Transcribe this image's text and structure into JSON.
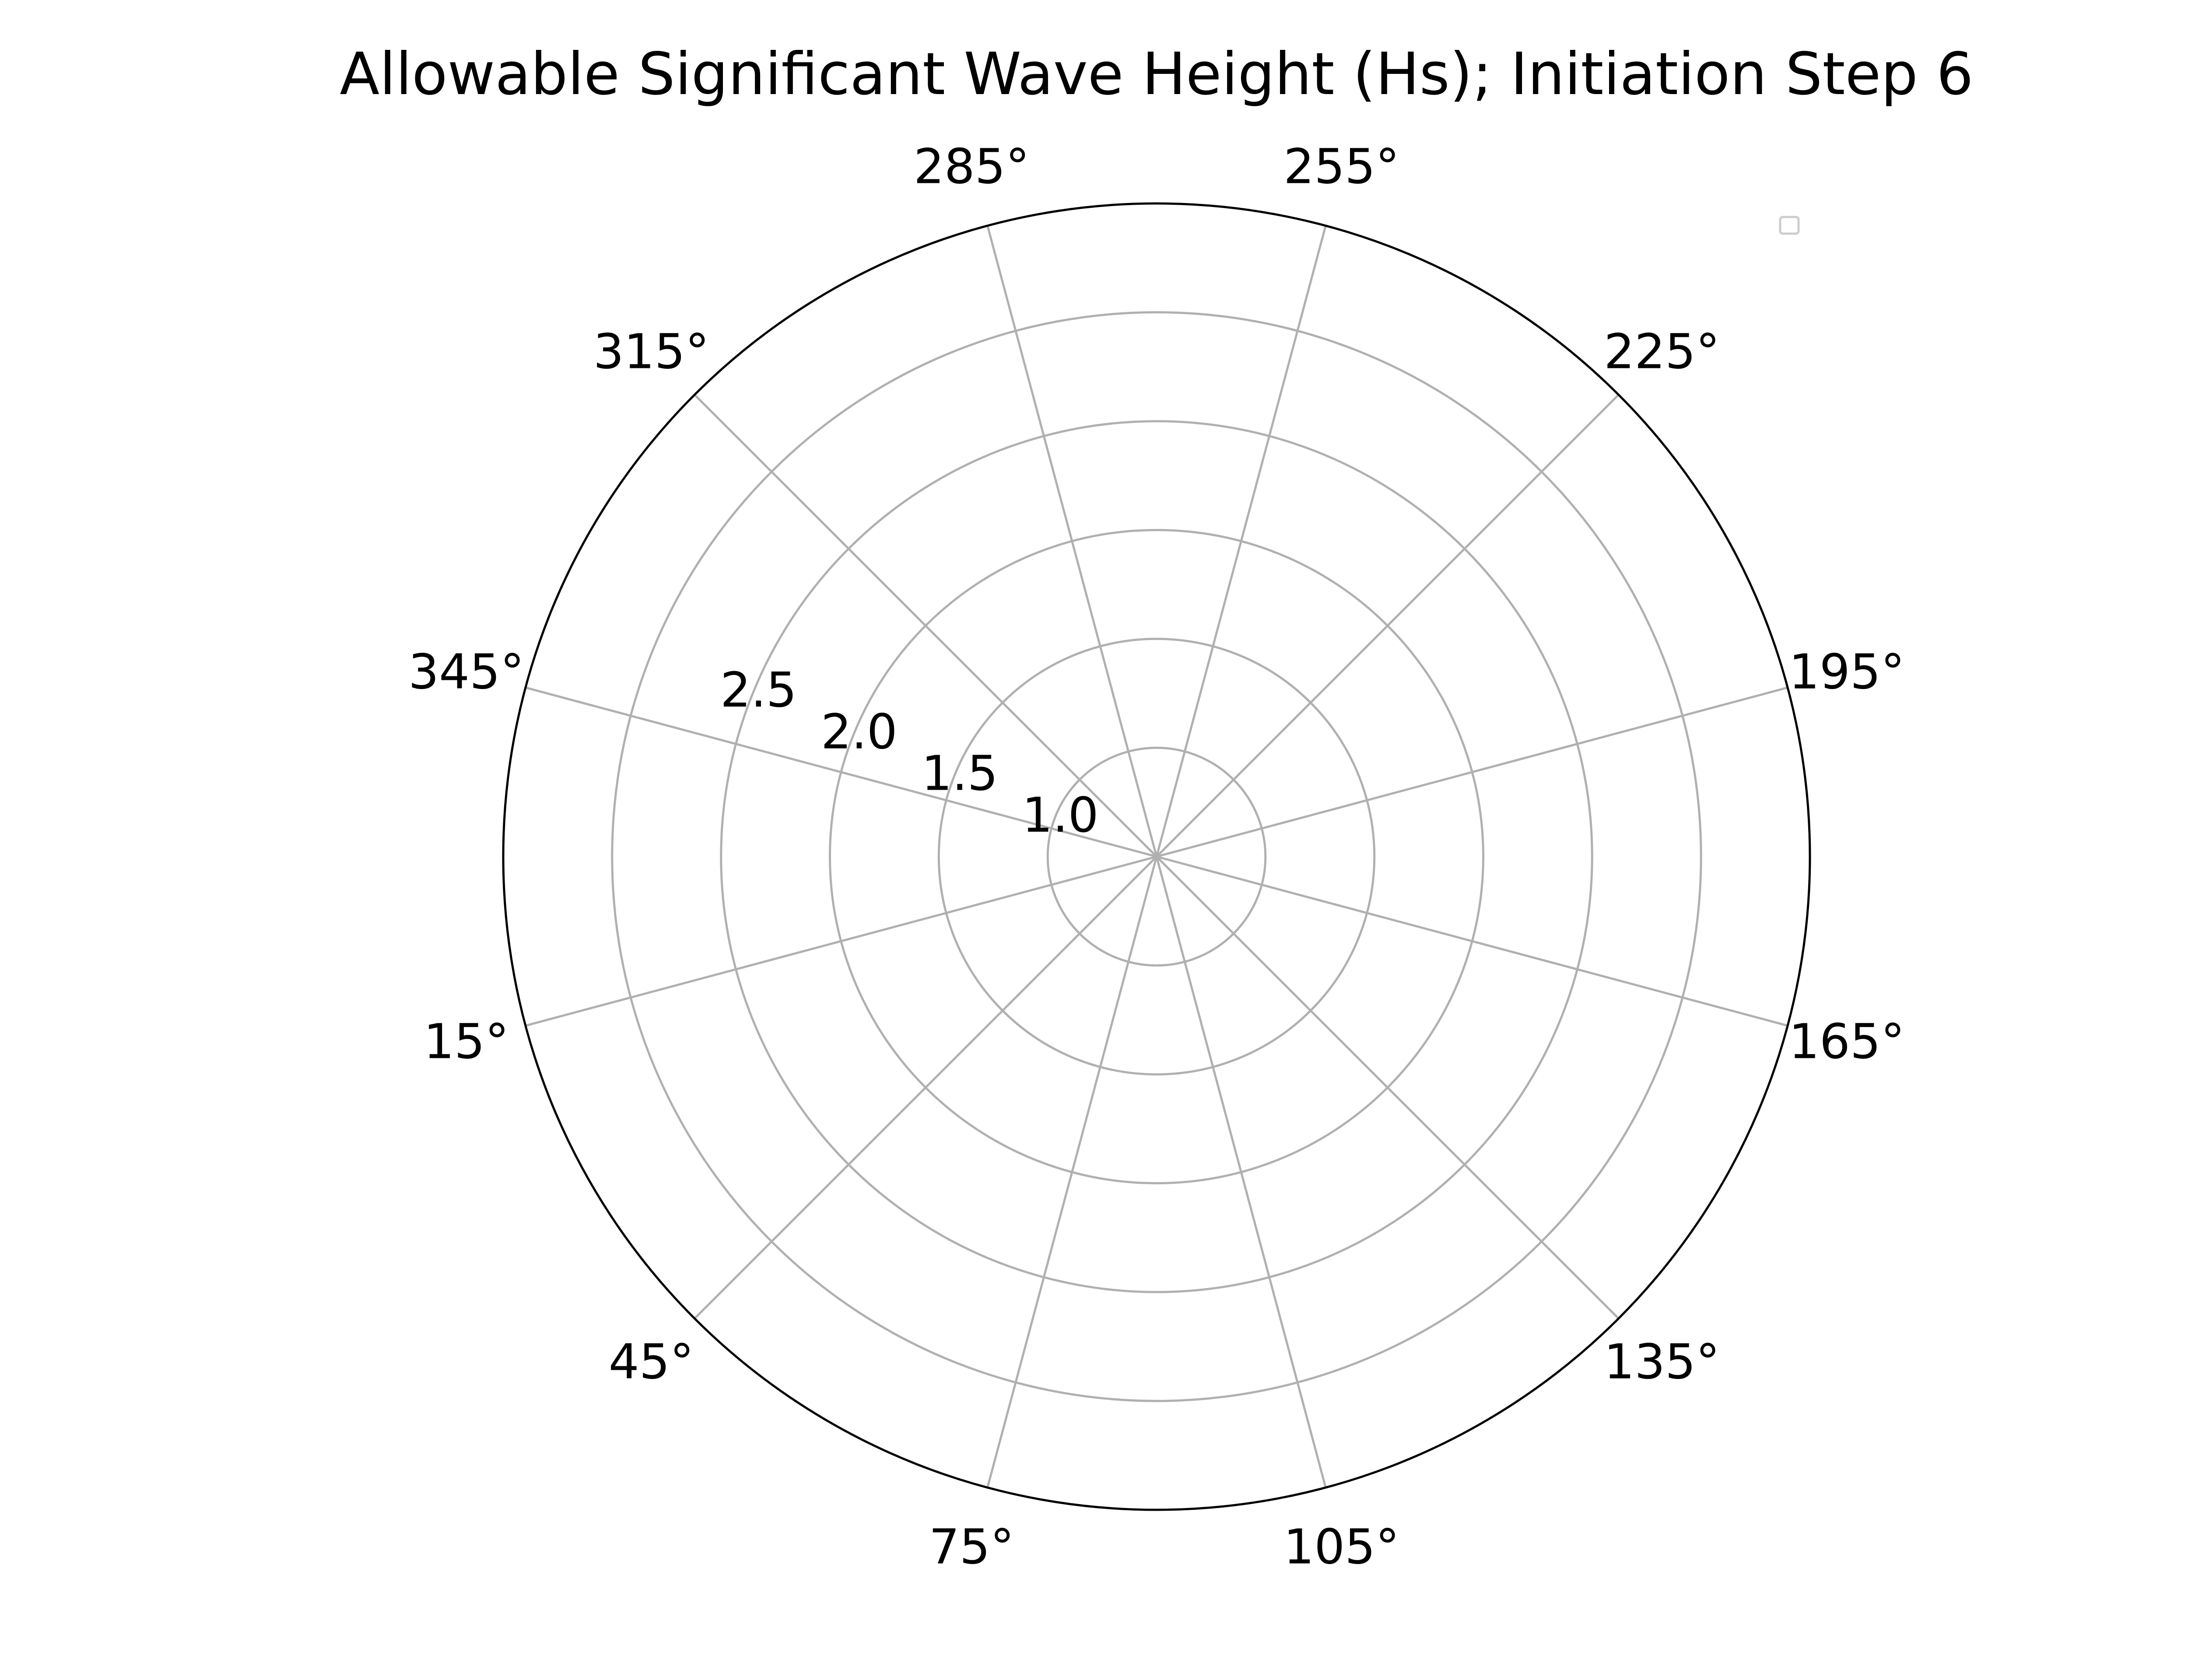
{
  "chart_data": {
    "type": "polar",
    "title": "Allowable Significant Wave Height (Hs); Initiation Step 6",
    "angular_ticks": [
      "15°",
      "45°",
      "75°",
      "105°",
      "135°",
      "165°",
      "195°",
      "225°",
      "255°",
      "285°",
      "315°",
      "345°"
    ],
    "angular_tick_values": [
      15,
      45,
      75,
      105,
      135,
      165,
      195,
      225,
      255,
      285,
      315,
      345
    ],
    "theta_zero_location": "W",
    "theta_direction": "counterclockwise",
    "radial_ticks": [
      1.0,
      1.5,
      2.0,
      2.5
    ],
    "radial_tick_labels": [
      "1.0",
      "1.5",
      "2.0",
      "2.5"
    ],
    "rlim": [
      0.5,
      3.5
    ],
    "series": [],
    "legend": {
      "placement": "upper-right",
      "entries": []
    },
    "grid": true,
    "colors": {
      "grid": "#b0b0b0",
      "spine": "#000000",
      "legend_border": "#cccccc"
    }
  }
}
